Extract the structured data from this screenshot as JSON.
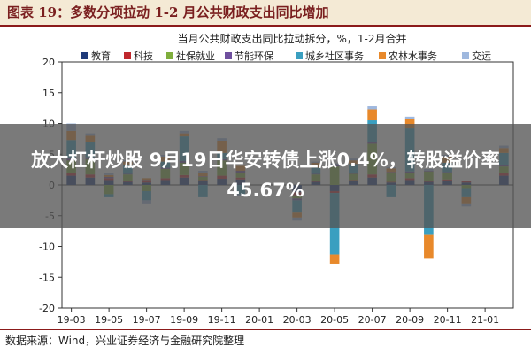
{
  "figure": {
    "title": "图表 19：多数分项拉动 1-2 月公共财政支出同比增加",
    "source": "数据来源：Wind，兴业证券经济与金融研究院整理"
  },
  "overlay": {
    "headline": "放大杠杆炒股 9月19日华安转债上涨0.4%，转股溢价率45.67%"
  },
  "chart_data": {
    "type": "bar",
    "stacked": true,
    "title": "当月公共财政支出同比拉动拆分，%，1-2月合并",
    "ylim": [
      -20,
      20
    ],
    "yticks": [
      -20,
      -15,
      -10,
      -5,
      0,
      5,
      10,
      15,
      20
    ],
    "xtick_labels": [
      "19-03",
      "19-05",
      "19-07",
      "19-09",
      "19-11",
      "20-01",
      "20-03",
      "20-05",
      "20-07",
      "20-09",
      "20-11",
      "21-01"
    ],
    "categories": [
      "19-03",
      "19-04",
      "19-05",
      "19-06",
      "19-07",
      "19-08",
      "19-09",
      "19-10",
      "19-11",
      "19-12",
      "20-01",
      "20-02",
      "20-03",
      "20-04",
      "20-05",
      "20-06",
      "20-07",
      "20-08",
      "20-09",
      "20-10",
      "20-11",
      "20-12",
      "21-01",
      "21-02"
    ],
    "legend_position": "top",
    "series": [
      {
        "name": "教育",
        "color": "#1f3a7a",
        "values": [
          1.5,
          1.2,
          0.8,
          0.5,
          0.4,
          0.8,
          1.2,
          0.6,
          1.0,
          0.9,
          0,
          0,
          -1.2,
          0.5,
          -1.0,
          0.6,
          1.2,
          0.4,
          0.8,
          0.5,
          0.6,
          0.4,
          0,
          1.5
        ]
      },
      {
        "name": "科技",
        "color": "#c0272d",
        "values": [
          0.5,
          0.5,
          0.3,
          0.2,
          0.2,
          0.3,
          0.4,
          0.2,
          0.5,
          0.3,
          0,
          0,
          -0.5,
          0.2,
          -0.3,
          0.2,
          0.5,
          0.1,
          0.3,
          0.2,
          0.3,
          0.2,
          0,
          0.5
        ]
      },
      {
        "name": "社保就业",
        "color": "#7fae3c",
        "values": [
          2.0,
          2.5,
          -1.5,
          1.0,
          -1.0,
          1.5,
          2.0,
          0.5,
          2.5,
          0.8,
          0,
          0,
          -0.5,
          1.0,
          3.0,
          1.0,
          5.0,
          1.5,
          0.8,
          1.5,
          1.0,
          -0.5,
          0,
          1.0
        ]
      },
      {
        "name": "节能环保",
        "color": "#6f4f9e",
        "values": [
          0.3,
          0.3,
          0.2,
          0.1,
          0.2,
          0.2,
          0.3,
          0.1,
          0.2,
          0.3,
          0,
          0,
          -0.3,
          0.1,
          0.2,
          0.1,
          0.3,
          0.1,
          0.3,
          0.1,
          0.2,
          0.1,
          0,
          0.2
        ]
      },
      {
        "name": "城乡社区事务",
        "color": "#3a9fc0",
        "values": [
          3.0,
          2.5,
          -0.5,
          1.5,
          -1.5,
          1.0,
          4.0,
          -2.0,
          1.0,
          -1.5,
          0,
          0,
          -2.0,
          1.0,
          -10.0,
          1.5,
          3.5,
          -2.0,
          7.0,
          -8.0,
          1.5,
          -1.5,
          0,
          2.0
        ]
      },
      {
        "name": "农林水事务",
        "color": "#e8892b",
        "values": [
          1.5,
          1.0,
          0.3,
          0.5,
          0.3,
          0.8,
          0.5,
          0.6,
          2.0,
          0.8,
          0,
          0,
          -0.8,
          0.8,
          -1.5,
          0.6,
          1.8,
          0.6,
          1.5,
          -4.0,
          1.0,
          -1.0,
          0,
          0.8
        ]
      },
      {
        "name": "交运",
        "color": "#9fb8de",
        "values": [
          1.2,
          0.4,
          0.3,
          0.2,
          -0.5,
          0.3,
          0.4,
          0.3,
          0.4,
          -0.3,
          0,
          0,
          -0.5,
          0.2,
          0.3,
          0.3,
          0.5,
          0.2,
          0.4,
          0.3,
          0.3,
          -0.5,
          0,
          0.4
        ]
      }
    ]
  }
}
